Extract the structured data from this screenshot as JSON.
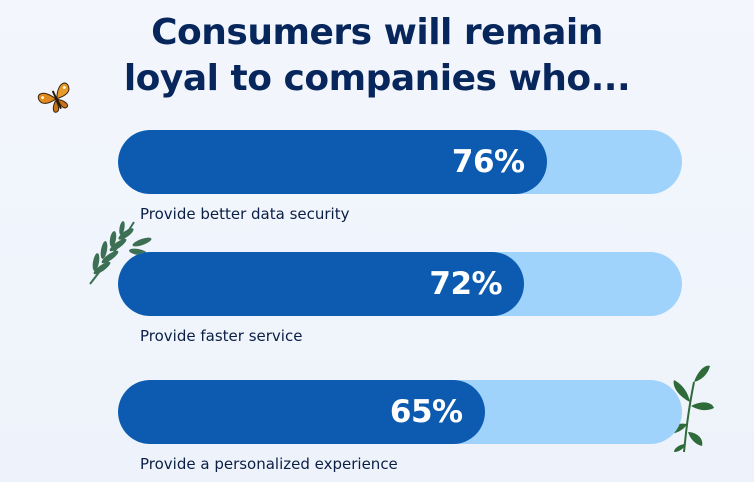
{
  "chart_data": {
    "type": "bar",
    "title_lines": [
      "Consumers will remain",
      "loyal to companies who..."
    ],
    "categories": [
      "Provide better data security",
      "Provide faster service",
      "Provide a personalized experience"
    ],
    "values": [
      76,
      72,
      65
    ],
    "value_labels": [
      "76%",
      "72%",
      "65%"
    ],
    "xlim": [
      0,
      100
    ],
    "orientation": "horizontal",
    "colors": {
      "fill": "#0c5bb0",
      "track": "#9fd3fb",
      "title": "#07265c",
      "label": "#0b1f45"
    }
  },
  "decorations": {
    "butterfly": "butterfly-icon",
    "fern": "fern-leaf-icon",
    "plant": "green-plant-icon"
  }
}
